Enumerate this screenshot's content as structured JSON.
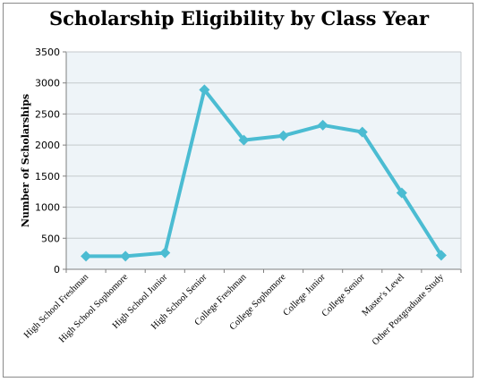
{
  "chart_data": {
    "type": "line",
    "title": "Scholarship Eligibility by Class Year",
    "xlabel": "",
    "ylabel": "Number of Scholarships",
    "ylim": [
      0,
      3500
    ],
    "yticks": [
      0,
      500,
      1000,
      1500,
      2000,
      2500,
      3000,
      3500
    ],
    "grid": true,
    "legend": "none",
    "categories": [
      "High School Freshman",
      "High School Sophomore",
      "High School Junior",
      "High School Senior",
      "College Freshman",
      "College Sophomore",
      "College Junior",
      "College Senior",
      "Master's Level",
      "Other Postgraduate Study"
    ],
    "series": [
      {
        "values": [
          210,
          210,
          265,
          2890,
          2080,
          2150,
          2320,
          2210,
          1230,
          225
        ],
        "color": "#4bbcd2"
      }
    ],
    "colors": {
      "plot_background": "#eef4f8",
      "gridline": "#c4c9cc",
      "axis": "#7f7f7f"
    }
  }
}
